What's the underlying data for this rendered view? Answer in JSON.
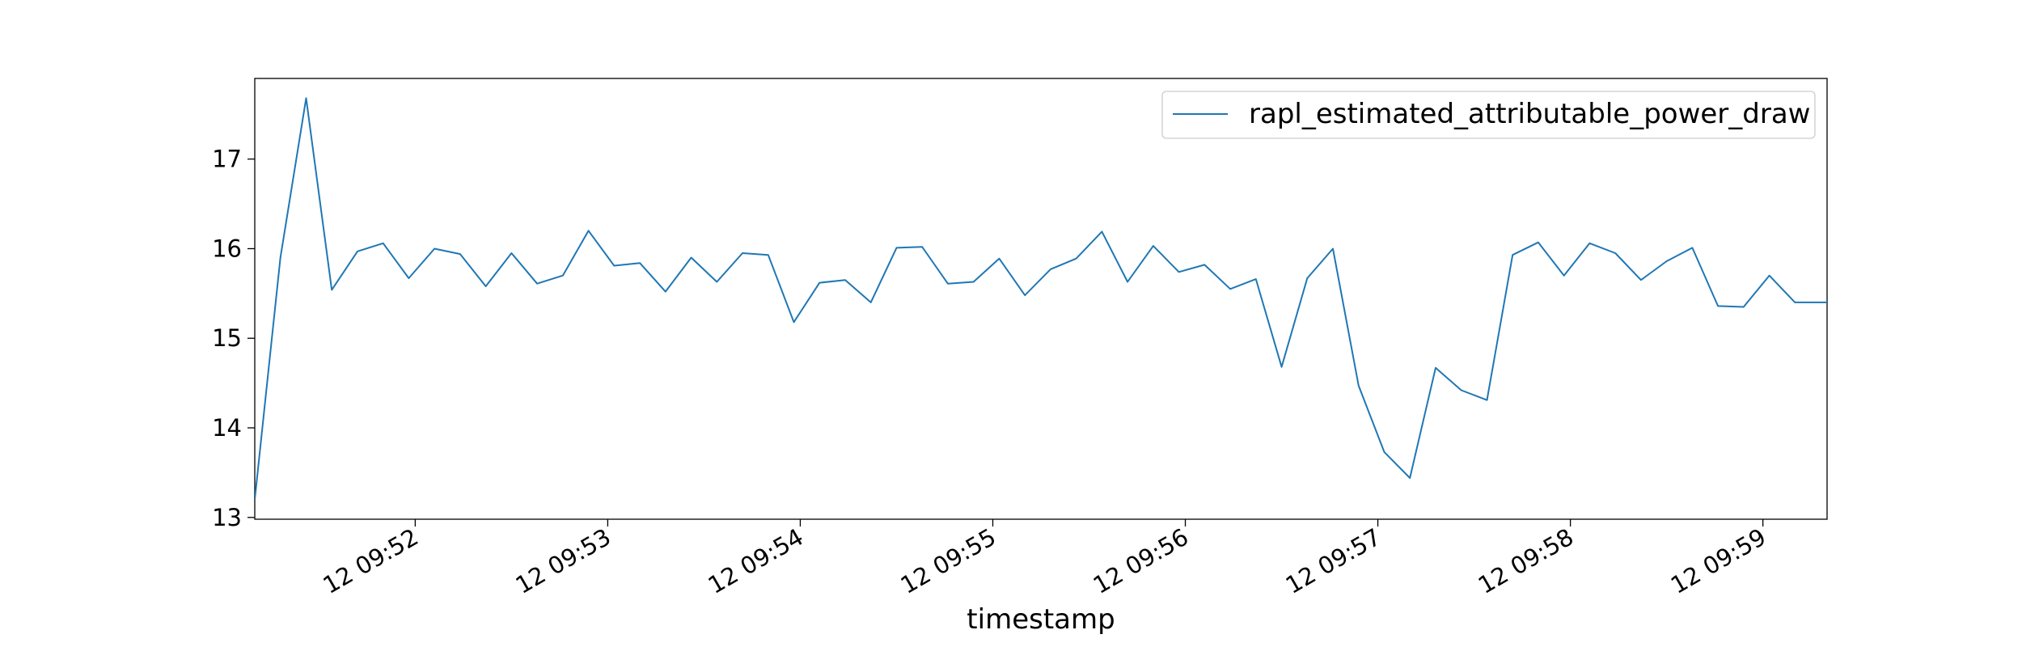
{
  "chart_data": {
    "type": "line",
    "title": "",
    "xlabel": "timestamp",
    "ylabel": "",
    "grid": false,
    "legend_position": "top-right",
    "ylim": [
      12.98,
      17.9
    ],
    "xlim": [
      "09:51:10",
      "09:59:20"
    ],
    "x_ticks": [
      "12 09:52",
      "12 09:53",
      "12 09:54",
      "12 09:55",
      "12 09:56",
      "12 09:57",
      "12 09:58",
      "12 09:59"
    ],
    "x_tick_times": [
      "09:52:00",
      "09:53:00",
      "09:54:00",
      "09:55:00",
      "09:56:00",
      "09:57:00",
      "09:58:00",
      "09:59:00"
    ],
    "y_ticks": [
      13,
      14,
      15,
      16,
      17
    ],
    "series": [
      {
        "name": "rapl_estimated_attributable_power_draw",
        "color": "#1f77b4",
        "x": [
          "09:51:10",
          "09:51:18",
          "09:51:26",
          "09:51:34",
          "09:51:42",
          "09:51:50",
          "09:51:58",
          "09:52:06",
          "09:52:14",
          "09:52:22",
          "09:52:30",
          "09:52:38",
          "09:52:46",
          "09:52:54",
          "09:53:02",
          "09:53:10",
          "09:53:18",
          "09:53:26",
          "09:53:34",
          "09:53:42",
          "09:53:50",
          "09:53:58",
          "09:54:06",
          "09:54:14",
          "09:54:22",
          "09:54:30",
          "09:54:38",
          "09:54:46",
          "09:54:54",
          "09:55:02",
          "09:55:10",
          "09:55:18",
          "09:55:26",
          "09:55:34",
          "09:55:42",
          "09:55:50",
          "09:55:58",
          "09:56:06",
          "09:56:14",
          "09:56:22",
          "09:56:30",
          "09:56:38",
          "09:56:46",
          "09:56:54",
          "09:57:02",
          "09:57:10",
          "09:57:18",
          "09:57:26",
          "09:57:34",
          "09:57:42",
          "09:57:50",
          "09:57:58",
          "09:58:06",
          "09:58:14",
          "09:58:22",
          "09:58:30",
          "09:58:38",
          "09:58:46",
          "09:58:54",
          "09:59:02",
          "09:59:10",
          "09:59:18",
          "09:59:20"
        ],
        "y": [
          13.2,
          15.9,
          17.68,
          15.54,
          15.97,
          16.06,
          15.67,
          16.0,
          15.94,
          15.58,
          15.95,
          15.61,
          15.7,
          16.2,
          15.81,
          15.84,
          15.52,
          15.9,
          15.63,
          15.95,
          15.93,
          15.18,
          15.62,
          15.65,
          15.4,
          16.01,
          16.02,
          15.61,
          15.63,
          15.89,
          15.48,
          15.77,
          15.89,
          16.19,
          15.63,
          16.03,
          15.74,
          15.82,
          15.55,
          15.66,
          14.68,
          15.67,
          16.0,
          14.47,
          13.73,
          13.44,
          14.67,
          14.42,
          14.31,
          15.93,
          16.07,
          15.7,
          16.06,
          15.95,
          15.65,
          15.86,
          16.01,
          15.36,
          15.35,
          15.7,
          15.4,
          15.4,
          15.4
        ]
      }
    ]
  }
}
